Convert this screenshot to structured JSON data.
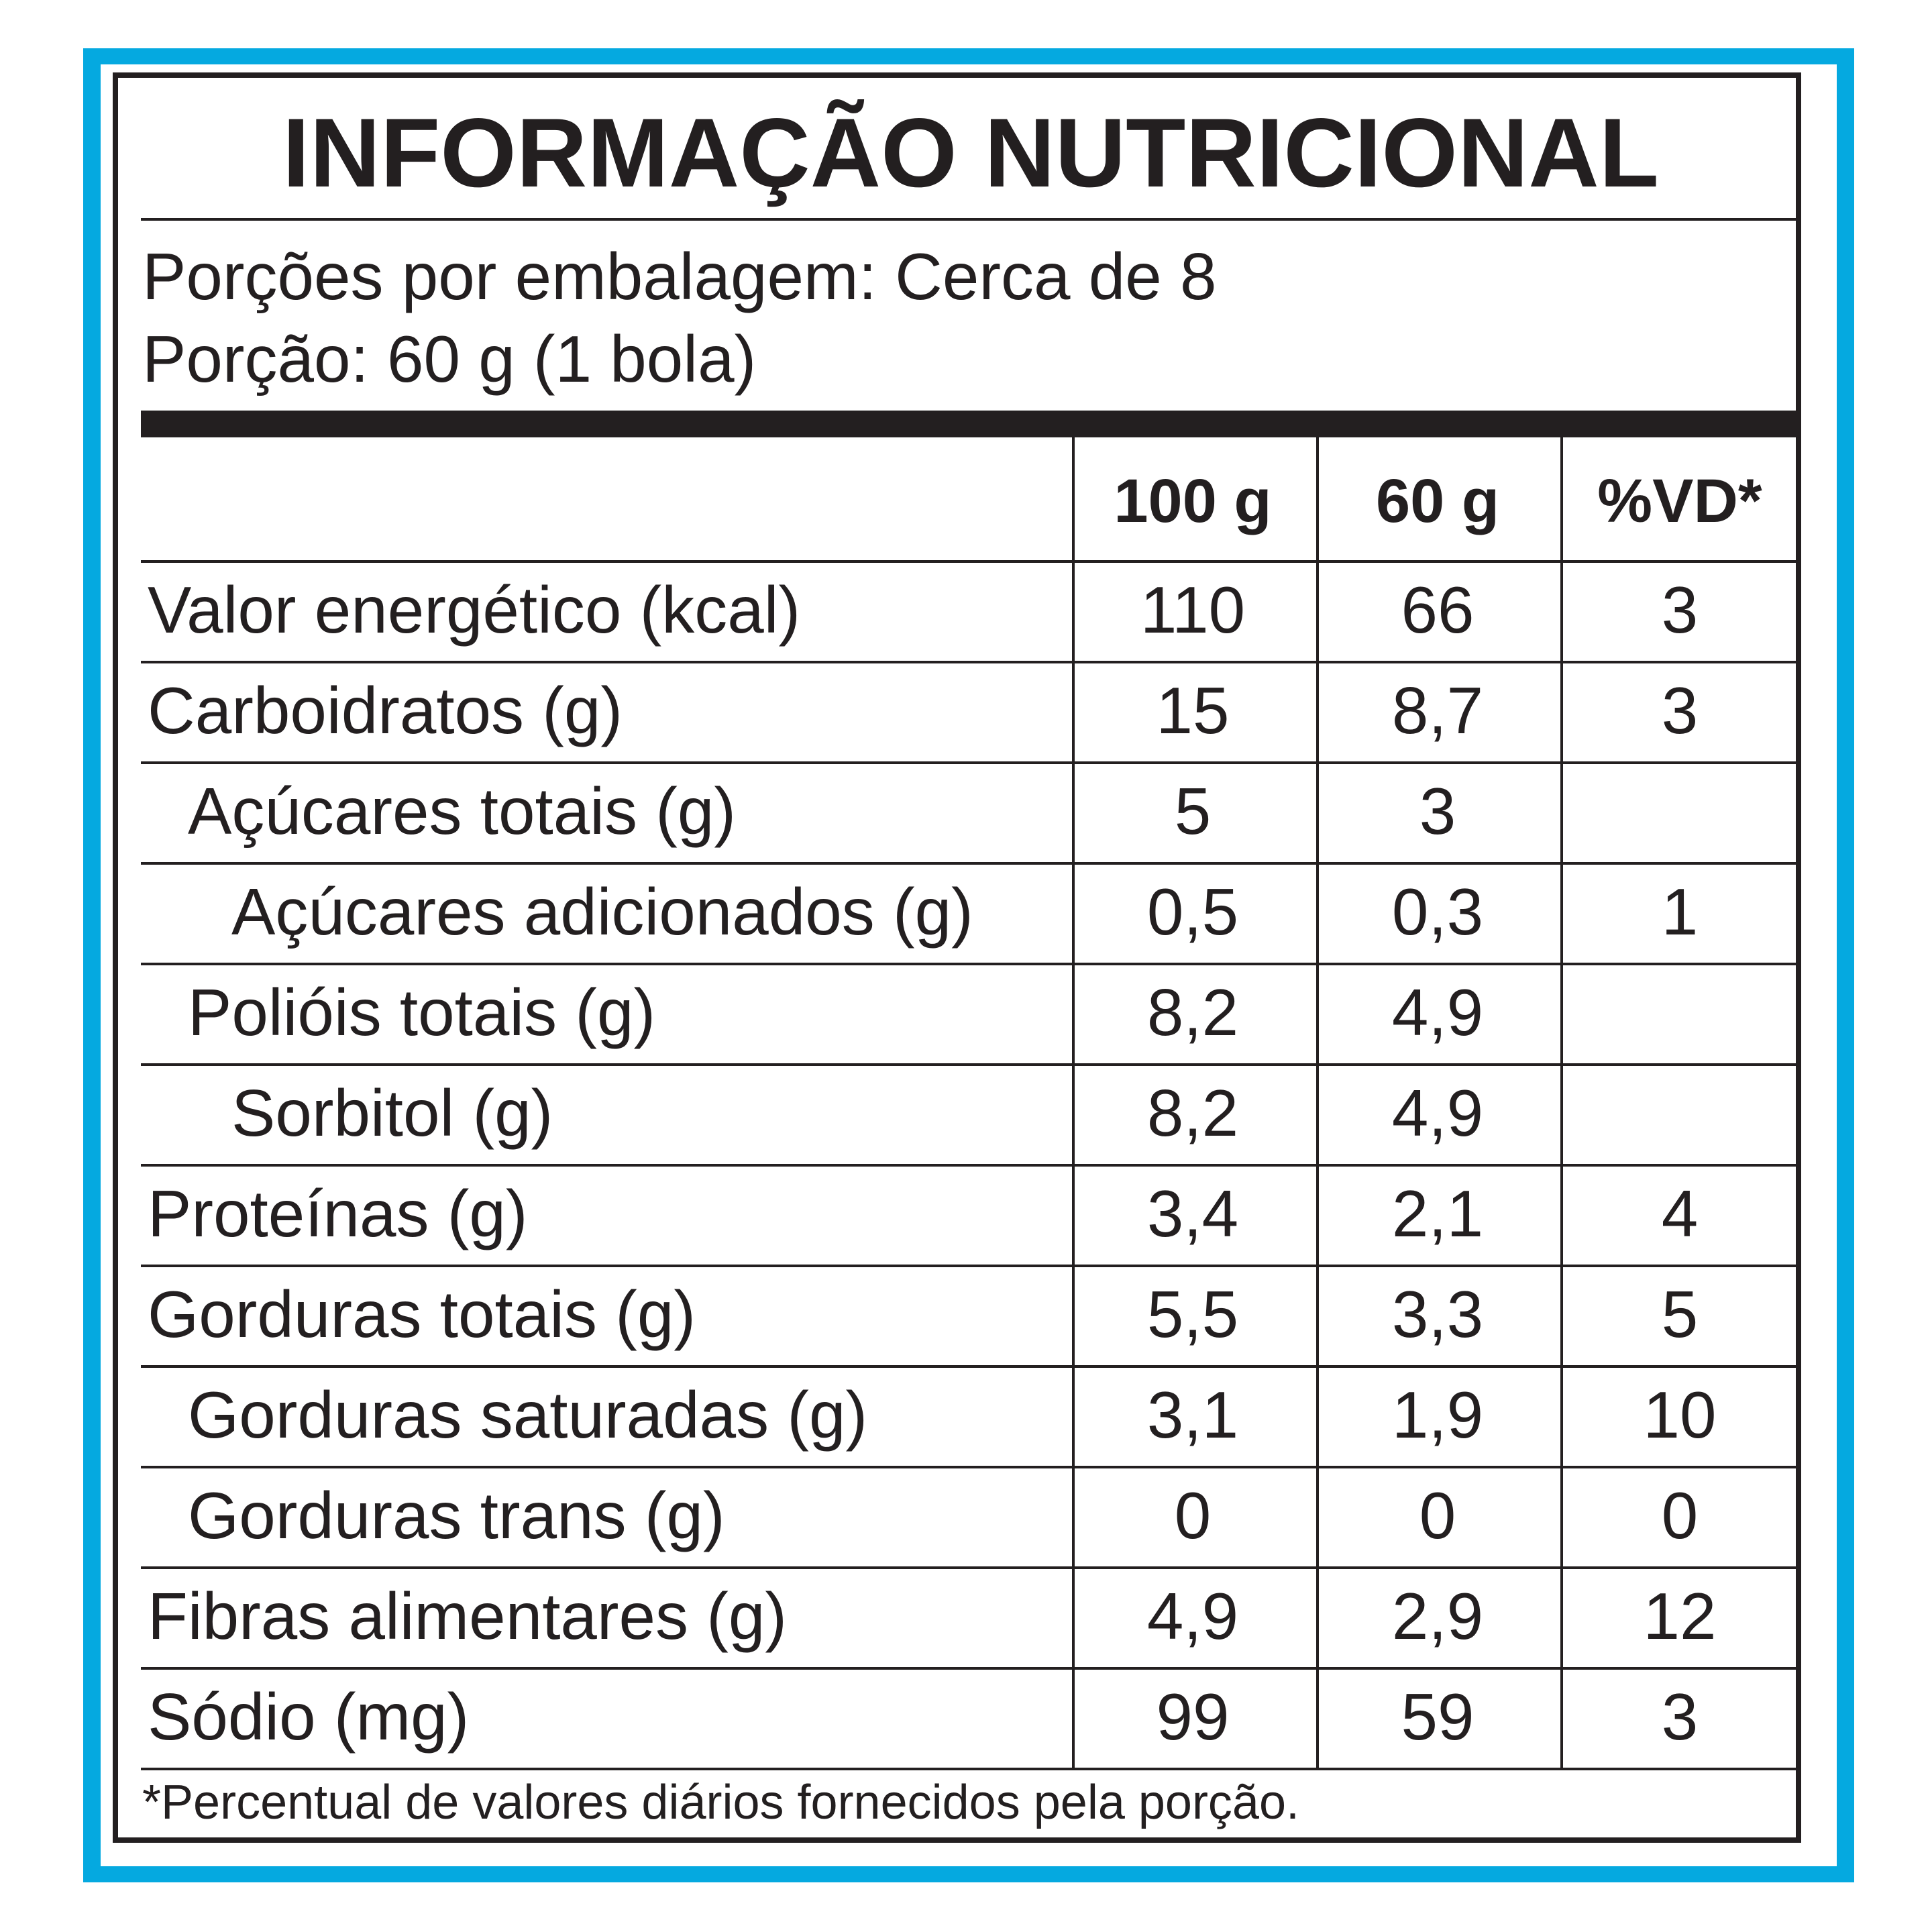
{
  "title": "INFORMAÇÃO NUTRICIONAL",
  "servings_per_package": "Porções por embalagem: Cerca de 8",
  "serving_size": "Porção: 60 g (1 bola)",
  "columns": [
    "100 g",
    "60 g",
    "%VD*"
  ],
  "rows": [
    {
      "label": "Valor energético (kcal)",
      "indent": 0,
      "v100": "110",
      "v60": "66",
      "vd": "3"
    },
    {
      "label": "Carboidratos (g)",
      "indent": 0,
      "v100": "15",
      "v60": "8,7",
      "vd": "3"
    },
    {
      "label": "Açúcares totais (g)",
      "indent": 1,
      "v100": "5",
      "v60": "3",
      "vd": ""
    },
    {
      "label": "Açúcares adicionados (g)",
      "indent": 2,
      "v100": "0,5",
      "v60": "0,3",
      "vd": "1"
    },
    {
      "label": "Polióis totais (g)",
      "indent": 1,
      "v100": "8,2",
      "v60": "4,9",
      "vd": ""
    },
    {
      "label": "Sorbitol (g)",
      "indent": 2,
      "v100": "8,2",
      "v60": "4,9",
      "vd": ""
    },
    {
      "label": "Proteínas (g)",
      "indent": 0,
      "v100": "3,4",
      "v60": "2,1",
      "vd": "4"
    },
    {
      "label": "Gorduras totais (g)",
      "indent": 0,
      "v100": "5,5",
      "v60": "3,3",
      "vd": "5"
    },
    {
      "label": "Gorduras saturadas (g)",
      "indent": 1,
      "v100": "3,1",
      "v60": "1,9",
      "vd": "10"
    },
    {
      "label": "Gorduras trans (g)",
      "indent": 1,
      "v100": "0",
      "v60": "0",
      "vd": "0"
    },
    {
      "label": "Fibras alimentares (g)",
      "indent": 0,
      "v100": "4,9",
      "v60": "2,9",
      "vd": "12"
    },
    {
      "label": "Sódio (mg)",
      "indent": 0,
      "v100": "99",
      "v60": "59",
      "vd": "3"
    }
  ],
  "footnote": "*Percentual de valores diários fornecidos pela porção.",
  "colors": {
    "frame": "#05a9e0",
    "ink": "#231f20"
  }
}
